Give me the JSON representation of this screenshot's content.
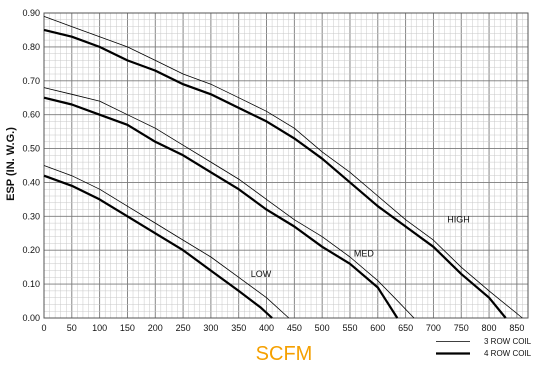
{
  "chart_data": {
    "type": "line",
    "xlabel": "SCFM",
    "ylabel": "ESP (IN. W.G.)",
    "xlim": [
      0,
      870
    ],
    "ylim": [
      0,
      0.9
    ],
    "x_ticks": [
      "0",
      "50",
      "100",
      "150",
      "200",
      "250",
      "300",
      "350",
      "400",
      "450",
      "500",
      "550",
      "600",
      "650",
      "700",
      "750",
      "800",
      "850"
    ],
    "y_ticks": [
      "0.00",
      "0.10",
      "0.20",
      "0.30",
      "0.40",
      "0.50",
      "0.60",
      "0.70",
      "0.80",
      "0.90"
    ],
    "grid": true,
    "legend_position": "bottom-right",
    "styles": {
      "three_row": {
        "color": "#000000",
        "label": "3 ROW COIL"
      },
      "four_row": {
        "color": "#000000",
        "label": "4 ROW COIL"
      },
      "xlabel_color": "#f5a000"
    },
    "series": [
      {
        "name": "HIGH",
        "style": "three_row",
        "points": [
          [
            0,
            0.89
          ],
          [
            50,
            0.86
          ],
          [
            100,
            0.83
          ],
          [
            150,
            0.8
          ],
          [
            200,
            0.76
          ],
          [
            250,
            0.72
          ],
          [
            300,
            0.69
          ],
          [
            350,
            0.65
          ],
          [
            400,
            0.61
          ],
          [
            450,
            0.56
          ],
          [
            500,
            0.49
          ],
          [
            550,
            0.43
          ],
          [
            600,
            0.36
          ],
          [
            650,
            0.29
          ],
          [
            700,
            0.23
          ],
          [
            750,
            0.15
          ],
          [
            800,
            0.08
          ],
          [
            860,
            0.0
          ]
        ]
      },
      {
        "name": "HIGH",
        "style": "four_row",
        "points": [
          [
            0,
            0.85
          ],
          [
            50,
            0.83
          ],
          [
            100,
            0.8
          ],
          [
            150,
            0.76
          ],
          [
            200,
            0.73
          ],
          [
            250,
            0.69
          ],
          [
            300,
            0.66
          ],
          [
            350,
            0.62
          ],
          [
            400,
            0.58
          ],
          [
            450,
            0.53
          ],
          [
            500,
            0.47
          ],
          [
            550,
            0.4
          ],
          [
            600,
            0.33
          ],
          [
            650,
            0.27
          ],
          [
            700,
            0.21
          ],
          [
            750,
            0.13
          ],
          [
            800,
            0.06
          ],
          [
            830,
            0.0
          ]
        ]
      },
      {
        "name": "MED",
        "style": "three_row",
        "points": [
          [
            0,
            0.68
          ],
          [
            50,
            0.66
          ],
          [
            100,
            0.64
          ],
          [
            150,
            0.6
          ],
          [
            200,
            0.56
          ],
          [
            250,
            0.51
          ],
          [
            300,
            0.46
          ],
          [
            350,
            0.41
          ],
          [
            400,
            0.35
          ],
          [
            450,
            0.29
          ],
          [
            500,
            0.24
          ],
          [
            550,
            0.18
          ],
          [
            600,
            0.11
          ],
          [
            630,
            0.06
          ],
          [
            665,
            0.0
          ]
        ]
      },
      {
        "name": "MED",
        "style": "four_row",
        "points": [
          [
            0,
            0.65
          ],
          [
            50,
            0.63
          ],
          [
            100,
            0.6
          ],
          [
            150,
            0.57
          ],
          [
            200,
            0.52
          ],
          [
            250,
            0.48
          ],
          [
            300,
            0.43
          ],
          [
            350,
            0.38
          ],
          [
            400,
            0.32
          ],
          [
            450,
            0.27
          ],
          [
            500,
            0.21
          ],
          [
            550,
            0.16
          ],
          [
            600,
            0.09
          ],
          [
            635,
            0.0
          ]
        ]
      },
      {
        "name": "LOW",
        "style": "three_row",
        "points": [
          [
            0,
            0.45
          ],
          [
            50,
            0.42
          ],
          [
            100,
            0.38
          ],
          [
            150,
            0.33
          ],
          [
            200,
            0.28
          ],
          [
            250,
            0.23
          ],
          [
            300,
            0.18
          ],
          [
            350,
            0.12
          ],
          [
            400,
            0.06
          ],
          [
            440,
            0.0
          ]
        ]
      },
      {
        "name": "LOW",
        "style": "four_row",
        "points": [
          [
            0,
            0.42
          ],
          [
            50,
            0.39
          ],
          [
            100,
            0.35
          ],
          [
            150,
            0.3
          ],
          [
            200,
            0.25
          ],
          [
            250,
            0.2
          ],
          [
            300,
            0.14
          ],
          [
            350,
            0.08
          ],
          [
            390,
            0.03
          ],
          [
            410,
            0.0
          ]
        ]
      }
    ],
    "curve_labels": [
      {
        "text": "HIGH",
        "x": 745,
        "y": 0.29
      },
      {
        "text": "MED",
        "x": 575,
        "y": 0.19
      },
      {
        "text": "LOW",
        "x": 390,
        "y": 0.13
      }
    ]
  }
}
